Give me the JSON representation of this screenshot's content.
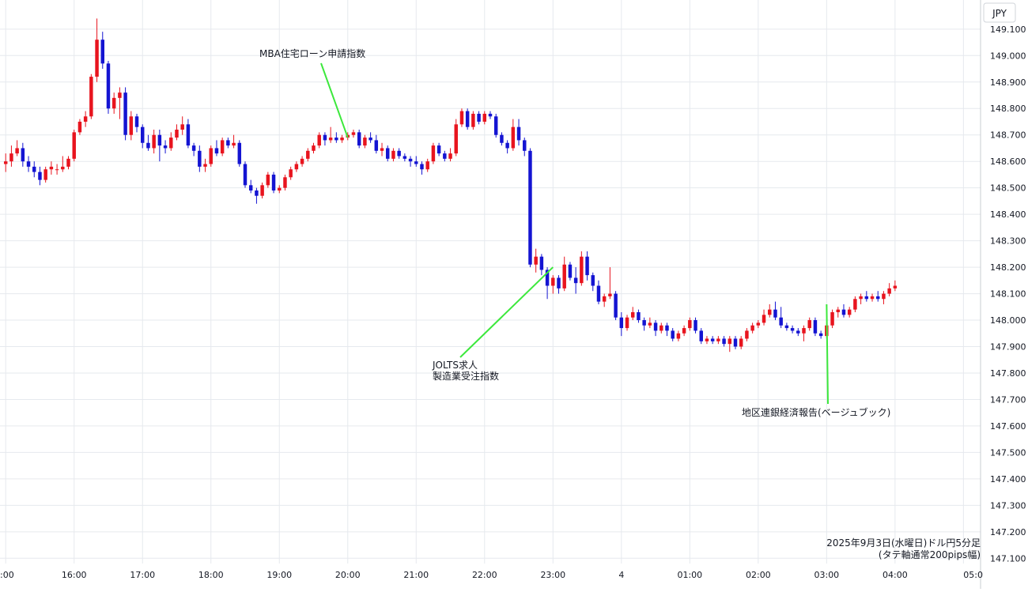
{
  "chart_data": {
    "type": "candlestick",
    "currency_label": "JPY",
    "y_ticks": [
      "149.100",
      "149.000",
      "148.900",
      "148.800",
      "148.700",
      "148.600",
      "148.500",
      "148.400",
      "148.300",
      "148.200",
      "148.100",
      "148.000",
      "147.900",
      "147.800",
      "147.700",
      "147.600",
      "147.500",
      "147.400",
      "147.300",
      "147.200",
      "147.100"
    ],
    "ylim": [
      147.08,
      149.21
    ],
    "x_ticks": [
      ":00",
      "16:00",
      "17:00",
      "18:00",
      "19:00",
      "20:00",
      "21:00",
      "22:00",
      "23:00",
      "4",
      "01:00",
      "02:00",
      "03:00",
      "04:00",
      "05:0"
    ],
    "x_range_minutes": [
      -5,
      855
    ],
    "grid": true,
    "up_color": "#e8141e",
    "down_color": "#1414d2",
    "annotation_line_color": "#3ce83c",
    "caption_line1": "2025年9月3日(水曜日)ドル円5分足",
    "caption_line2": "(タテ軸通常200pips幅)",
    "annotations": [
      {
        "lines": [
          "MBA住宅ローン申請指数"
        ],
        "target_minute": 300,
        "target_price": 148.69
      },
      {
        "lines": [
          "JOLTS求人",
          "製造業受注指数"
        ],
        "target_minute": 480,
        "target_price": 148.2
      },
      {
        "lines": [
          "地区連銀経済報告(ベージュブック)"
        ],
        "target_minute": 720,
        "target_price": 148.06
      }
    ],
    "candles": [
      {
        "t": 0,
        "o": 148.59,
        "h": 148.63,
        "l": 148.56,
        "c": 148.6
      },
      {
        "t": 5,
        "o": 148.6,
        "h": 148.66,
        "l": 148.58,
        "c": 148.63
      },
      {
        "t": 10,
        "o": 148.63,
        "h": 148.68,
        "l": 148.62,
        "c": 148.65
      },
      {
        "t": 15,
        "o": 148.65,
        "h": 148.67,
        "l": 148.58,
        "c": 148.6
      },
      {
        "t": 20,
        "o": 148.6,
        "h": 148.62,
        "l": 148.56,
        "c": 148.58
      },
      {
        "t": 25,
        "o": 148.58,
        "h": 148.6,
        "l": 148.54,
        "c": 148.56
      },
      {
        "t": 30,
        "o": 148.56,
        "h": 148.58,
        "l": 148.51,
        "c": 148.53
      },
      {
        "t": 35,
        "o": 148.53,
        "h": 148.58,
        "l": 148.52,
        "c": 148.57
      },
      {
        "t": 40,
        "o": 148.57,
        "h": 148.6,
        "l": 148.55,
        "c": 148.58
      },
      {
        "t": 45,
        "o": 148.57,
        "h": 148.59,
        "l": 148.55,
        "c": 148.57
      },
      {
        "t": 50,
        "o": 148.57,
        "h": 148.62,
        "l": 148.56,
        "c": 148.58
      },
      {
        "t": 55,
        "o": 148.58,
        "h": 148.62,
        "l": 148.57,
        "c": 148.61
      },
      {
        "t": 60,
        "o": 148.61,
        "h": 148.72,
        "l": 148.6,
        "c": 148.71
      },
      {
        "t": 65,
        "o": 148.71,
        "h": 148.76,
        "l": 148.7,
        "c": 148.75
      },
      {
        "t": 70,
        "o": 148.75,
        "h": 148.79,
        "l": 148.73,
        "c": 148.77
      },
      {
        "t": 75,
        "o": 148.77,
        "h": 148.93,
        "l": 148.76,
        "c": 148.92
      },
      {
        "t": 80,
        "o": 148.92,
        "h": 149.14,
        "l": 148.9,
        "c": 149.06
      },
      {
        "t": 85,
        "o": 149.06,
        "h": 149.09,
        "l": 148.95,
        "c": 148.97
      },
      {
        "t": 90,
        "o": 148.97,
        "h": 148.98,
        "l": 148.78,
        "c": 148.8
      },
      {
        "t": 95,
        "o": 148.8,
        "h": 148.86,
        "l": 148.78,
        "c": 148.84
      },
      {
        "t": 100,
        "o": 148.84,
        "h": 148.88,
        "l": 148.76,
        "c": 148.86
      },
      {
        "t": 105,
        "o": 148.86,
        "h": 148.88,
        "l": 148.68,
        "c": 148.7
      },
      {
        "t": 110,
        "o": 148.7,
        "h": 148.79,
        "l": 148.68,
        "c": 148.77
      },
      {
        "t": 115,
        "o": 148.77,
        "h": 148.78,
        "l": 148.71,
        "c": 148.73
      },
      {
        "t": 120,
        "o": 148.73,
        "h": 148.74,
        "l": 148.65,
        "c": 148.67
      },
      {
        "t": 125,
        "o": 148.67,
        "h": 148.7,
        "l": 148.64,
        "c": 148.65
      },
      {
        "t": 130,
        "o": 148.65,
        "h": 148.72,
        "l": 148.63,
        "c": 148.7
      },
      {
        "t": 135,
        "o": 148.7,
        "h": 148.72,
        "l": 148.6,
        "c": 148.66
      },
      {
        "t": 140,
        "o": 148.66,
        "h": 148.68,
        "l": 148.63,
        "c": 148.65
      },
      {
        "t": 145,
        "o": 148.65,
        "h": 148.71,
        "l": 148.64,
        "c": 148.69
      },
      {
        "t": 150,
        "o": 148.69,
        "h": 148.74,
        "l": 148.68,
        "c": 148.72
      },
      {
        "t": 155,
        "o": 148.72,
        "h": 148.77,
        "l": 148.7,
        "c": 148.74
      },
      {
        "t": 160,
        "o": 148.74,
        "h": 148.76,
        "l": 148.65,
        "c": 148.66
      },
      {
        "t": 165,
        "o": 148.66,
        "h": 148.67,
        "l": 148.62,
        "c": 148.64
      },
      {
        "t": 170,
        "o": 148.64,
        "h": 148.66,
        "l": 148.56,
        "c": 148.58
      },
      {
        "t": 175,
        "o": 148.58,
        "h": 148.61,
        "l": 148.56,
        "c": 148.59
      },
      {
        "t": 180,
        "o": 148.59,
        "h": 148.66,
        "l": 148.58,
        "c": 148.65
      },
      {
        "t": 185,
        "o": 148.65,
        "h": 148.68,
        "l": 148.62,
        "c": 148.63
      },
      {
        "t": 190,
        "o": 148.63,
        "h": 148.69,
        "l": 148.62,
        "c": 148.68
      },
      {
        "t": 195,
        "o": 148.68,
        "h": 148.69,
        "l": 148.65,
        "c": 148.66
      },
      {
        "t": 200,
        "o": 148.66,
        "h": 148.7,
        "l": 148.65,
        "c": 148.67
      },
      {
        "t": 205,
        "o": 148.67,
        "h": 148.68,
        "l": 148.58,
        "c": 148.59
      },
      {
        "t": 210,
        "o": 148.59,
        "h": 148.6,
        "l": 148.5,
        "c": 148.51
      },
      {
        "t": 215,
        "o": 148.51,
        "h": 148.53,
        "l": 148.48,
        "c": 148.49
      },
      {
        "t": 220,
        "o": 148.49,
        "h": 148.5,
        "l": 148.44,
        "c": 148.47
      },
      {
        "t": 225,
        "o": 148.47,
        "h": 148.52,
        "l": 148.46,
        "c": 148.51
      },
      {
        "t": 230,
        "o": 148.51,
        "h": 148.56,
        "l": 148.5,
        "c": 148.55
      },
      {
        "t": 235,
        "o": 148.55,
        "h": 148.56,
        "l": 148.48,
        "c": 148.49
      },
      {
        "t": 240,
        "o": 148.49,
        "h": 148.51,
        "l": 148.48,
        "c": 148.5
      },
      {
        "t": 245,
        "o": 148.5,
        "h": 148.55,
        "l": 148.49,
        "c": 148.54
      },
      {
        "t": 250,
        "o": 148.54,
        "h": 148.58,
        "l": 148.53,
        "c": 148.57
      },
      {
        "t": 255,
        "o": 148.57,
        "h": 148.6,
        "l": 148.56,
        "c": 148.59
      },
      {
        "t": 260,
        "o": 148.59,
        "h": 148.62,
        "l": 148.58,
        "c": 148.61
      },
      {
        "t": 265,
        "o": 148.61,
        "h": 148.65,
        "l": 148.6,
        "c": 148.64
      },
      {
        "t": 270,
        "o": 148.64,
        "h": 148.67,
        "l": 148.63,
        "c": 148.66
      },
      {
        "t": 275,
        "o": 148.66,
        "h": 148.71,
        "l": 148.65,
        "c": 148.7
      },
      {
        "t": 280,
        "o": 148.7,
        "h": 148.71,
        "l": 148.66,
        "c": 148.68
      },
      {
        "t": 285,
        "o": 148.68,
        "h": 148.73,
        "l": 148.67,
        "c": 148.69
      },
      {
        "t": 290,
        "o": 148.69,
        "h": 148.71,
        "l": 148.67,
        "c": 148.68
      },
      {
        "t": 295,
        "o": 148.68,
        "h": 148.7,
        "l": 148.67,
        "c": 148.69
      },
      {
        "t": 300,
        "o": 148.69,
        "h": 148.71,
        "l": 148.68,
        "c": 148.7
      },
      {
        "t": 305,
        "o": 148.7,
        "h": 148.72,
        "l": 148.69,
        "c": 148.71
      },
      {
        "t": 310,
        "o": 148.71,
        "h": 148.72,
        "l": 148.65,
        "c": 148.66
      },
      {
        "t": 315,
        "o": 148.66,
        "h": 148.7,
        "l": 148.65,
        "c": 148.69
      },
      {
        "t": 320,
        "o": 148.69,
        "h": 148.71,
        "l": 148.67,
        "c": 148.68
      },
      {
        "t": 325,
        "o": 148.68,
        "h": 148.7,
        "l": 148.63,
        "c": 148.64
      },
      {
        "t": 330,
        "o": 148.64,
        "h": 148.67,
        "l": 148.62,
        "c": 148.65
      },
      {
        "t": 335,
        "o": 148.65,
        "h": 148.66,
        "l": 148.6,
        "c": 148.61
      },
      {
        "t": 340,
        "o": 148.61,
        "h": 148.65,
        "l": 148.6,
        "c": 148.64
      },
      {
        "t": 345,
        "o": 148.64,
        "h": 148.65,
        "l": 148.61,
        "c": 148.62
      },
      {
        "t": 350,
        "o": 148.62,
        "h": 148.63,
        "l": 148.6,
        "c": 148.61
      },
      {
        "t": 355,
        "o": 148.61,
        "h": 148.62,
        "l": 148.58,
        "c": 148.6
      },
      {
        "t": 360,
        "o": 148.6,
        "h": 148.62,
        "l": 148.58,
        "c": 148.59
      },
      {
        "t": 365,
        "o": 148.59,
        "h": 148.6,
        "l": 148.55,
        "c": 148.57
      },
      {
        "t": 370,
        "o": 148.57,
        "h": 148.61,
        "l": 148.56,
        "c": 148.6
      },
      {
        "t": 375,
        "o": 148.6,
        "h": 148.67,
        "l": 148.59,
        "c": 148.66
      },
      {
        "t": 380,
        "o": 148.66,
        "h": 148.67,
        "l": 148.62,
        "c": 148.63
      },
      {
        "t": 385,
        "o": 148.63,
        "h": 148.64,
        "l": 148.6,
        "c": 148.61
      },
      {
        "t": 390,
        "o": 148.61,
        "h": 148.65,
        "l": 148.6,
        "c": 148.63
      },
      {
        "t": 395,
        "o": 148.63,
        "h": 148.76,
        "l": 148.62,
        "c": 148.74
      },
      {
        "t": 400,
        "o": 148.74,
        "h": 148.8,
        "l": 148.73,
        "c": 148.79
      },
      {
        "t": 405,
        "o": 148.79,
        "h": 148.8,
        "l": 148.72,
        "c": 148.73
      },
      {
        "t": 410,
        "o": 148.73,
        "h": 148.79,
        "l": 148.72,
        "c": 148.78
      },
      {
        "t": 415,
        "o": 148.78,
        "h": 148.79,
        "l": 148.74,
        "c": 148.75
      },
      {
        "t": 420,
        "o": 148.75,
        "h": 148.79,
        "l": 148.74,
        "c": 148.78
      },
      {
        "t": 425,
        "o": 148.78,
        "h": 148.79,
        "l": 148.76,
        "c": 148.77
      },
      {
        "t": 430,
        "o": 148.77,
        "h": 148.78,
        "l": 148.69,
        "c": 148.7
      },
      {
        "t": 435,
        "o": 148.7,
        "h": 148.71,
        "l": 148.66,
        "c": 148.67
      },
      {
        "t": 440,
        "o": 148.67,
        "h": 148.68,
        "l": 148.63,
        "c": 148.65
      },
      {
        "t": 445,
        "o": 148.65,
        "h": 148.76,
        "l": 148.64,
        "c": 148.73
      },
      {
        "t": 450,
        "o": 148.73,
        "h": 148.76,
        "l": 148.66,
        "c": 148.68
      },
      {
        "t": 455,
        "o": 148.68,
        "h": 148.69,
        "l": 148.62,
        "c": 148.64
      },
      {
        "t": 460,
        "o": 148.64,
        "h": 148.65,
        "l": 148.2,
        "c": 148.21
      },
      {
        "t": 465,
        "o": 148.21,
        "h": 148.27,
        "l": 148.18,
        "c": 148.24
      },
      {
        "t": 470,
        "o": 148.24,
        "h": 148.25,
        "l": 148.17,
        "c": 148.19
      },
      {
        "t": 475,
        "o": 148.19,
        "h": 148.2,
        "l": 148.08,
        "c": 148.13
      },
      {
        "t": 480,
        "o": 148.13,
        "h": 148.17,
        "l": 148.1,
        "c": 148.16
      },
      {
        "t": 485,
        "o": 148.16,
        "h": 148.17,
        "l": 148.1,
        "c": 148.12
      },
      {
        "t": 490,
        "o": 148.12,
        "h": 148.24,
        "l": 148.11,
        "c": 148.21
      },
      {
        "t": 495,
        "o": 148.21,
        "h": 148.22,
        "l": 148.15,
        "c": 148.16
      },
      {
        "t": 500,
        "o": 148.16,
        "h": 148.2,
        "l": 148.1,
        "c": 148.14
      },
      {
        "t": 505,
        "o": 148.14,
        "h": 148.26,
        "l": 148.13,
        "c": 148.24
      },
      {
        "t": 510,
        "o": 148.24,
        "h": 148.26,
        "l": 148.15,
        "c": 148.17
      },
      {
        "t": 515,
        "o": 148.17,
        "h": 148.18,
        "l": 148.11,
        "c": 148.13
      },
      {
        "t": 520,
        "o": 148.13,
        "h": 148.15,
        "l": 148.06,
        "c": 148.07
      },
      {
        "t": 525,
        "o": 148.07,
        "h": 148.1,
        "l": 148.05,
        "c": 148.09
      },
      {
        "t": 530,
        "o": 148.09,
        "h": 148.2,
        "l": 148.08,
        "c": 148.1
      },
      {
        "t": 535,
        "o": 148.1,
        "h": 148.11,
        "l": 148.0,
        "c": 148.01
      },
      {
        "t": 540,
        "o": 148.01,
        "h": 148.03,
        "l": 147.94,
        "c": 147.97
      },
      {
        "t": 545,
        "o": 147.97,
        "h": 148.02,
        "l": 147.96,
        "c": 148.01
      },
      {
        "t": 550,
        "o": 148.01,
        "h": 148.05,
        "l": 148.0,
        "c": 148.03
      },
      {
        "t": 555,
        "o": 148.03,
        "h": 148.04,
        "l": 147.99,
        "c": 148.0
      },
      {
        "t": 560,
        "o": 148.0,
        "h": 148.01,
        "l": 147.96,
        "c": 147.98
      },
      {
        "t": 565,
        "o": 147.98,
        "h": 148.01,
        "l": 147.97,
        "c": 147.99
      },
      {
        "t": 570,
        "o": 147.99,
        "h": 148.0,
        "l": 147.94,
        "c": 147.96
      },
      {
        "t": 575,
        "o": 147.96,
        "h": 147.99,
        "l": 147.95,
        "c": 147.98
      },
      {
        "t": 580,
        "o": 147.98,
        "h": 147.99,
        "l": 147.94,
        "c": 147.96
      },
      {
        "t": 585,
        "o": 147.96,
        "h": 147.97,
        "l": 147.92,
        "c": 147.93
      },
      {
        "t": 590,
        "o": 147.93,
        "h": 147.96,
        "l": 147.92,
        "c": 147.95
      },
      {
        "t": 595,
        "o": 147.95,
        "h": 147.98,
        "l": 147.94,
        "c": 147.97
      },
      {
        "t": 600,
        "o": 147.97,
        "h": 148.01,
        "l": 147.96,
        "c": 148.0
      },
      {
        "t": 605,
        "o": 148.0,
        "h": 148.01,
        "l": 147.95,
        "c": 147.96
      },
      {
        "t": 610,
        "o": 147.96,
        "h": 147.97,
        "l": 147.91,
        "c": 147.92
      },
      {
        "t": 615,
        "o": 147.92,
        "h": 147.94,
        "l": 147.91,
        "c": 147.93
      },
      {
        "t": 620,
        "o": 147.93,
        "h": 147.94,
        "l": 147.91,
        "c": 147.92
      },
      {
        "t": 625,
        "o": 147.92,
        "h": 147.94,
        "l": 147.91,
        "c": 147.93
      },
      {
        "t": 630,
        "o": 147.93,
        "h": 147.94,
        "l": 147.9,
        "c": 147.91
      },
      {
        "t": 635,
        "o": 147.91,
        "h": 147.94,
        "l": 147.88,
        "c": 147.93
      },
      {
        "t": 640,
        "o": 147.93,
        "h": 147.94,
        "l": 147.89,
        "c": 147.9
      },
      {
        "t": 645,
        "o": 147.9,
        "h": 147.94,
        "l": 147.89,
        "c": 147.93
      },
      {
        "t": 650,
        "o": 147.93,
        "h": 147.97,
        "l": 147.92,
        "c": 147.96
      },
      {
        "t": 655,
        "o": 147.96,
        "h": 147.99,
        "l": 147.95,
        "c": 147.98
      },
      {
        "t": 660,
        "o": 147.98,
        "h": 148.0,
        "l": 147.97,
        "c": 147.99
      },
      {
        "t": 665,
        "o": 147.99,
        "h": 148.04,
        "l": 147.98,
        "c": 148.02
      },
      {
        "t": 670,
        "o": 148.02,
        "h": 148.06,
        "l": 148.01,
        "c": 148.04
      },
      {
        "t": 675,
        "o": 148.04,
        "h": 148.07,
        "l": 148.0,
        "c": 148.01
      },
      {
        "t": 680,
        "o": 148.01,
        "h": 148.05,
        "l": 147.97,
        "c": 147.98
      },
      {
        "t": 685,
        "o": 147.98,
        "h": 147.99,
        "l": 147.96,
        "c": 147.97
      },
      {
        "t": 690,
        "o": 147.97,
        "h": 147.98,
        "l": 147.95,
        "c": 147.96
      },
      {
        "t": 695,
        "o": 147.96,
        "h": 147.97,
        "l": 147.94,
        "c": 147.95
      },
      {
        "t": 700,
        "o": 147.95,
        "h": 147.98,
        "l": 147.92,
        "c": 147.97
      },
      {
        "t": 705,
        "o": 147.97,
        "h": 148.01,
        "l": 147.96,
        "c": 148.0
      },
      {
        "t": 710,
        "o": 148.0,
        "h": 148.01,
        "l": 147.94,
        "c": 147.95
      },
      {
        "t": 715,
        "o": 147.95,
        "h": 147.96,
        "l": 147.93,
        "c": 147.94
      },
      {
        "t": 720,
        "o": 147.94,
        "h": 147.99,
        "l": 147.93,
        "c": 147.98
      },
      {
        "t": 725,
        "o": 147.98,
        "h": 148.04,
        "l": 147.97,
        "c": 148.03
      },
      {
        "t": 730,
        "o": 148.03,
        "h": 148.05,
        "l": 148.01,
        "c": 148.04
      },
      {
        "t": 735,
        "o": 148.04,
        "h": 148.06,
        "l": 148.01,
        "c": 148.02
      },
      {
        "t": 740,
        "o": 148.02,
        "h": 148.05,
        "l": 148.01,
        "c": 148.04
      },
      {
        "t": 745,
        "o": 148.04,
        "h": 148.09,
        "l": 148.03,
        "c": 148.08
      },
      {
        "t": 750,
        "o": 148.08,
        "h": 148.1,
        "l": 148.06,
        "c": 148.09
      },
      {
        "t": 755,
        "o": 148.09,
        "h": 148.11,
        "l": 148.07,
        "c": 148.08
      },
      {
        "t": 760,
        "o": 148.08,
        "h": 148.1,
        "l": 148.07,
        "c": 148.09
      },
      {
        "t": 765,
        "o": 148.09,
        "h": 148.11,
        "l": 148.07,
        "c": 148.08
      },
      {
        "t": 770,
        "o": 148.08,
        "h": 148.11,
        "l": 148.06,
        "c": 148.1
      },
      {
        "t": 775,
        "o": 148.1,
        "h": 148.14,
        "l": 148.09,
        "c": 148.12
      },
      {
        "t": 780,
        "o": 148.12,
        "h": 148.15,
        "l": 148.11,
        "c": 148.13
      }
    ]
  }
}
